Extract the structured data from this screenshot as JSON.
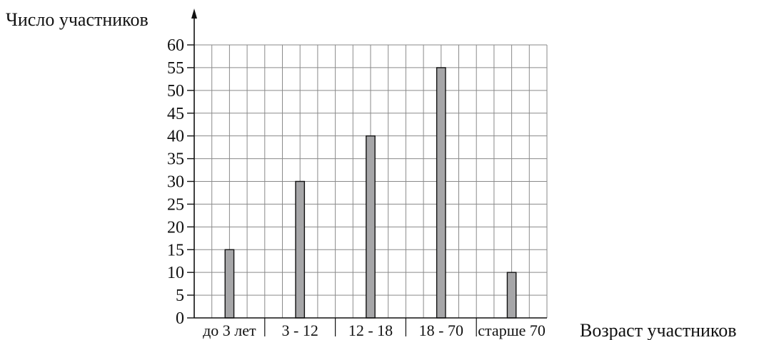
{
  "chart_data": {
    "type": "bar",
    "ylabel": "Число участников",
    "xlabel": "Возраст участников",
    "categories": [
      "до 3 лет",
      "3 - 12",
      "12 - 18",
      "18 - 70",
      "старше 70"
    ],
    "values": [
      15,
      30,
      40,
      55,
      10
    ],
    "ylim": [
      0,
      60
    ],
    "ytick_step": 5,
    "grid": true,
    "bar_color": "#a6a6a8"
  }
}
